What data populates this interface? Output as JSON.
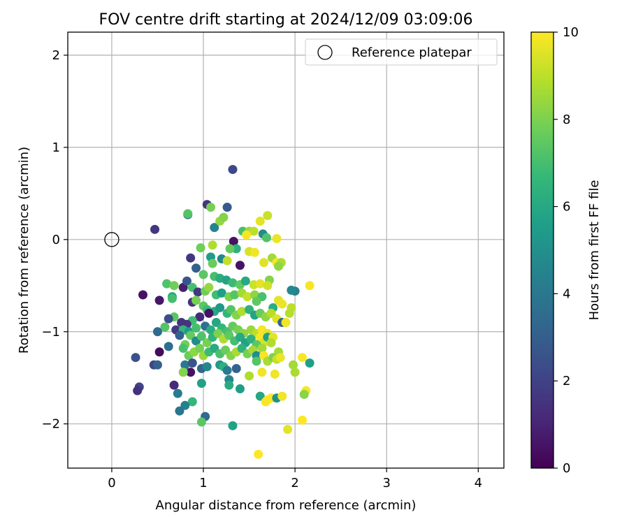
{
  "chart_data": {
    "type": "scatter",
    "title": "FOV centre drift starting at 2024/12/09 03:09:06",
    "xlabel": "Angular distance from reference (arcmin)",
    "ylabel": "Rotation from reference (arcmin)",
    "xlim": [
      -0.48,
      4.28
    ],
    "ylim": [
      -2.48,
      2.25
    ],
    "xticks": [
      0,
      1,
      2,
      3,
      4
    ],
    "xtick_labels": [
      "0",
      "1",
      "2",
      "3",
      "4"
    ],
    "yticks": [
      -2,
      -1,
      0,
      1,
      2
    ],
    "ytick_labels": [
      "−2",
      "−1",
      "0",
      "1",
      "2"
    ],
    "grid": true,
    "legend": {
      "position": "top-right",
      "entries": [
        {
          "label": "Reference platepar",
          "marker": "open-circle"
        }
      ]
    },
    "reference_point": {
      "x": 0,
      "y": 0
    },
    "colorbar": {
      "label": "Hours from first FF file",
      "range": [
        0,
        10
      ],
      "ticks": [
        0,
        2,
        4,
        6,
        8,
        10
      ],
      "tick_labels": [
        "0",
        "2",
        "4",
        "6",
        "8",
        "10"
      ],
      "colormap": "viridis",
      "stops": [
        "#440154",
        "#482878",
        "#3e4989",
        "#31688e",
        "#26828e",
        "#1f9e89",
        "#35b779",
        "#6ece58",
        "#b5de2b",
        "#fde725"
      ]
    },
    "points": [
      [
        1.32,
        0.76,
        2.2
      ],
      [
        1.04,
        0.38,
        1.5
      ],
      [
        1.26,
        0.35,
        2.8
      ],
      [
        0.83,
        0.27,
        3.4
      ],
      [
        0.83,
        0.28,
        7.3
      ],
      [
        1.08,
        0.35,
        7.9
      ],
      [
        0.47,
        0.11,
        1.6
      ],
      [
        1.12,
        0.13,
        4.5
      ],
      [
        1.18,
        0.2,
        8.4
      ],
      [
        1.22,
        0.24,
        8.1
      ],
      [
        1.43,
        0.09,
        7.0
      ],
      [
        1.5,
        0.09,
        8.5
      ],
      [
        1.55,
        0.09,
        9.0
      ],
      [
        1.62,
        0.2,
        9.6
      ],
      [
        1.7,
        0.26,
        9.2
      ],
      [
        1.65,
        0.06,
        4.8
      ],
      [
        1.69,
        0.02,
        7.2
      ],
      [
        1.8,
        0.01,
        9.7
      ],
      [
        1.47,
        0.05,
        9.9
      ],
      [
        1.33,
        -0.02,
        0.5
      ],
      [
        1.36,
        -0.1,
        6.3
      ],
      [
        1.29,
        -0.1,
        7.6
      ],
      [
        1.1,
        -0.06,
        8.8
      ],
      [
        0.97,
        -0.09,
        7.8
      ],
      [
        1.08,
        -0.19,
        5.5
      ],
      [
        1.2,
        -0.21,
        4.7
      ],
      [
        1.26,
        -0.23,
        9.1
      ],
      [
        0.86,
        -0.2,
        1.6
      ],
      [
        1.4,
        -0.28,
        0.5
      ],
      [
        1.5,
        -0.13,
        9.4
      ],
      [
        1.56,
        -0.14,
        9.8
      ],
      [
        1.66,
        -0.25,
        9.5
      ],
      [
        1.75,
        -0.2,
        8.6
      ],
      [
        1.8,
        -0.25,
        9.9
      ],
      [
        1.85,
        -0.25,
        8.8
      ],
      [
        1.82,
        -0.29,
        8.3
      ],
      [
        1.1,
        -0.26,
        7.7
      ],
      [
        0.92,
        -0.31,
        3.0
      ],
      [
        1.0,
        -0.38,
        7.4
      ],
      [
        1.12,
        -0.4,
        7.0
      ],
      [
        1.18,
        -0.42,
        6.2
      ],
      [
        1.25,
        -0.44,
        5.8
      ],
      [
        1.32,
        -0.47,
        6.8
      ],
      [
        1.4,
        -0.49,
        7.5
      ],
      [
        1.46,
        -0.45,
        6.0
      ],
      [
        1.55,
        -0.49,
        9.2
      ],
      [
        1.62,
        -0.48,
        9.6
      ],
      [
        1.72,
        -0.44,
        8.1
      ],
      [
        1.7,
        -0.5,
        9.3
      ],
      [
        2.16,
        -0.5,
        9.9
      ],
      [
        2.0,
        -0.56,
        4.5
      ],
      [
        1.96,
        -0.55,
        4.7
      ],
      [
        0.6,
        -0.48,
        7.2
      ],
      [
        0.68,
        -0.5,
        7.8
      ],
      [
        0.78,
        -0.52,
        0.8
      ],
      [
        0.82,
        -0.45,
        2.7
      ],
      [
        0.88,
        -0.52,
        7.0
      ],
      [
        0.94,
        -0.57,
        1.7
      ],
      [
        1.02,
        -0.56,
        7.8
      ],
      [
        1.06,
        -0.52,
        8.4
      ],
      [
        1.14,
        -0.6,
        6.9
      ],
      [
        1.2,
        -0.58,
        5.6
      ],
      [
        1.28,
        -0.62,
        8.0
      ],
      [
        1.34,
        -0.6,
        7.3
      ],
      [
        1.42,
        -0.58,
        8.6
      ],
      [
        1.48,
        -0.62,
        9.1
      ],
      [
        1.56,
        -0.6,
        8.3
      ],
      [
        1.64,
        -0.62,
        7.1
      ],
      [
        1.58,
        -0.67,
        7.5
      ],
      [
        1.82,
        -0.66,
        9.6
      ],
      [
        1.86,
        -0.7,
        9.7
      ],
      [
        1.96,
        -0.74,
        9.0
      ],
      [
        1.76,
        -0.74,
        6.2
      ],
      [
        0.34,
        -0.6,
        0.5
      ],
      [
        0.52,
        -0.66,
        0.6
      ],
      [
        0.66,
        -0.62,
        5.8
      ],
      [
        0.66,
        -0.64,
        7.0
      ],
      [
        0.88,
        -0.68,
        1.5
      ],
      [
        0.92,
        -0.66,
        7.9
      ],
      [
        1.0,
        -0.72,
        7.4
      ],
      [
        1.04,
        -0.76,
        6.8
      ],
      [
        1.12,
        -0.78,
        6.0
      ],
      [
        1.18,
        -0.74,
        5.3
      ],
      [
        1.26,
        -0.8,
        6.6
      ],
      [
        1.3,
        -0.76,
        7.3
      ],
      [
        1.36,
        -0.82,
        8.1
      ],
      [
        1.42,
        -0.78,
        8.8
      ],
      [
        1.5,
        -0.76,
        6.4
      ],
      [
        1.56,
        -0.82,
        5.8
      ],
      [
        1.62,
        -0.8,
        7.7
      ],
      [
        1.68,
        -0.84,
        8.3
      ],
      [
        1.74,
        -0.8,
        8.9
      ],
      [
        1.8,
        -0.86,
        9.5
      ],
      [
        1.86,
        -0.9,
        3.2
      ],
      [
        1.94,
        -0.8,
        8.9
      ],
      [
        1.9,
        -0.9,
        9.8
      ],
      [
        1.06,
        -0.8,
        0.5
      ],
      [
        0.96,
        -0.84,
        1.2
      ],
      [
        0.88,
        -0.88,
        6.9
      ],
      [
        0.82,
        -0.92,
        1.6
      ],
      [
        0.76,
        -0.9,
        1.5
      ],
      [
        0.68,
        -0.84,
        7.4
      ],
      [
        0.62,
        -0.86,
        2.4
      ],
      [
        0.58,
        -0.95,
        7.3
      ],
      [
        0.7,
        -0.98,
        1.7
      ],
      [
        0.78,
        -0.98,
        6.6
      ],
      [
        0.84,
        -1.0,
        5.4
      ],
      [
        0.92,
        -0.96,
        7.0
      ],
      [
        1.02,
        -0.94,
        3.7
      ],
      [
        1.08,
        -0.98,
        6.2
      ],
      [
        1.14,
        -0.9,
        5.9
      ],
      [
        1.2,
        -0.96,
        6.6
      ],
      [
        1.26,
        -1.0,
        7.0
      ],
      [
        1.32,
        -0.94,
        7.6
      ],
      [
        1.38,
        -0.98,
        7.9
      ],
      [
        1.44,
        -1.02,
        8.3
      ],
      [
        1.52,
        -0.98,
        8.5
      ],
      [
        1.58,
        -1.02,
        9.0
      ],
      [
        1.64,
        -0.98,
        9.9
      ],
      [
        1.7,
        -1.02,
        9.6
      ],
      [
        1.62,
        -1.06,
        9.9
      ],
      [
        1.66,
        -1.12,
        9.4
      ],
      [
        1.7,
        -1.06,
        5.7
      ],
      [
        1.76,
        -1.06,
        9.6
      ],
      [
        1.74,
        -1.12,
        8.8
      ],
      [
        0.5,
        -1.0,
        3.4
      ],
      [
        0.62,
        -1.16,
        3.6
      ],
      [
        0.74,
        -1.04,
        3.0
      ],
      [
        0.8,
        -1.14,
        7.8
      ],
      [
        0.86,
        -1.04,
        7.6
      ],
      [
        0.92,
        -1.1,
        4.8
      ],
      [
        0.98,
        -1.05,
        7.2
      ],
      [
        1.04,
        -1.12,
        7.9
      ],
      [
        1.1,
        -1.06,
        6.5
      ],
      [
        1.16,
        -1.02,
        8.0
      ],
      [
        1.22,
        -1.08,
        8.8
      ],
      [
        1.28,
        -1.04,
        7.5
      ],
      [
        1.34,
        -1.1,
        7.0
      ],
      [
        1.4,
        -1.06,
        6.0
      ],
      [
        1.46,
        -1.12,
        5.7
      ],
      [
        1.52,
        -1.08,
        6.4
      ],
      [
        1.58,
        -1.14,
        7.4
      ],
      [
        1.64,
        -1.18,
        8.6
      ],
      [
        0.52,
        -1.22,
        0.3
      ],
      [
        0.78,
        -1.18,
        7.1
      ],
      [
        0.84,
        -1.26,
        7.7
      ],
      [
        0.9,
        -1.22,
        8.3
      ],
      [
        0.96,
        -1.18,
        7.9
      ],
      [
        1.0,
        -1.26,
        8.5
      ],
      [
        1.06,
        -1.22,
        6.8
      ],
      [
        1.12,
        -1.18,
        6.1
      ],
      [
        1.18,
        -1.24,
        7.1
      ],
      [
        1.24,
        -1.2,
        7.7
      ],
      [
        1.3,
        -1.26,
        8.1
      ],
      [
        1.36,
        -1.22,
        8.7
      ],
      [
        1.42,
        -1.18,
        6.4
      ],
      [
        1.48,
        -1.24,
        7.9
      ],
      [
        1.54,
        -1.2,
        8.6
      ],
      [
        1.58,
        -1.26,
        4.9
      ],
      [
        1.66,
        -1.26,
        9.9
      ],
      [
        1.7,
        -1.32,
        8.7
      ],
      [
        1.76,
        -1.28,
        8.0
      ],
      [
        1.8,
        -1.3,
        9.1
      ],
      [
        1.82,
        -1.22,
        8.6
      ],
      [
        1.84,
        -1.28,
        9.7
      ],
      [
        2.08,
        -1.28,
        9.9
      ],
      [
        2.16,
        -1.34,
        5.6
      ],
      [
        0.26,
        -1.28,
        2.5
      ],
      [
        0.46,
        -1.36,
        2.1
      ],
      [
        0.5,
        -1.36,
        3.1
      ],
      [
        0.8,
        -1.36,
        4.0
      ],
      [
        0.88,
        -1.34,
        2.6
      ],
      [
        0.86,
        -1.44,
        0.5
      ],
      [
        0.78,
        -1.44,
        8.1
      ],
      [
        0.98,
        -1.4,
        3.3
      ],
      [
        1.04,
        -1.38,
        4.6
      ],
      [
        1.18,
        -1.36,
        5.4
      ],
      [
        1.22,
        -1.38,
        6.4
      ],
      [
        1.26,
        -1.42,
        4.2
      ],
      [
        1.36,
        -1.4,
        3.2
      ],
      [
        1.58,
        -1.32,
        7.3
      ],
      [
        1.64,
        -1.44,
        9.8
      ],
      [
        1.78,
        -1.46,
        9.8
      ],
      [
        1.98,
        -1.36,
        8.6
      ],
      [
        2.0,
        -1.44,
        8.7
      ],
      [
        1.5,
        -1.48,
        8.8
      ],
      [
        1.28,
        -1.52,
        4.6
      ],
      [
        0.98,
        -1.56,
        5.7
      ],
      [
        0.68,
        -1.58,
        1.2
      ],
      [
        0.3,
        -1.6,
        2.1
      ],
      [
        0.28,
        -1.64,
        1.4
      ],
      [
        0.72,
        -1.67,
        4.1
      ],
      [
        1.28,
        -1.58,
        6.1
      ],
      [
        1.4,
        -1.62,
        5.6
      ],
      [
        1.62,
        -1.7,
        5.9
      ],
      [
        1.7,
        -1.74,
        9.9
      ],
      [
        1.68,
        -1.76,
        9.9
      ],
      [
        1.74,
        -1.72,
        10.0
      ],
      [
        1.8,
        -1.72,
        5.0
      ],
      [
        1.86,
        -1.7,
        9.8
      ],
      [
        2.12,
        -1.64,
        9.9
      ],
      [
        2.1,
        -1.68,
        8.2
      ],
      [
        0.88,
        -1.76,
        6.6
      ],
      [
        0.8,
        -1.8,
        4.4
      ],
      [
        0.74,
        -1.86,
        3.9
      ],
      [
        1.02,
        -1.92,
        3.4
      ],
      [
        0.98,
        -1.98,
        7.4
      ],
      [
        1.32,
        -2.02,
        5.7
      ],
      [
        1.92,
        -2.06,
        9.6
      ],
      [
        2.08,
        -1.96,
        10.0
      ],
      [
        1.6,
        -2.33,
        10.0
      ]
    ]
  }
}
